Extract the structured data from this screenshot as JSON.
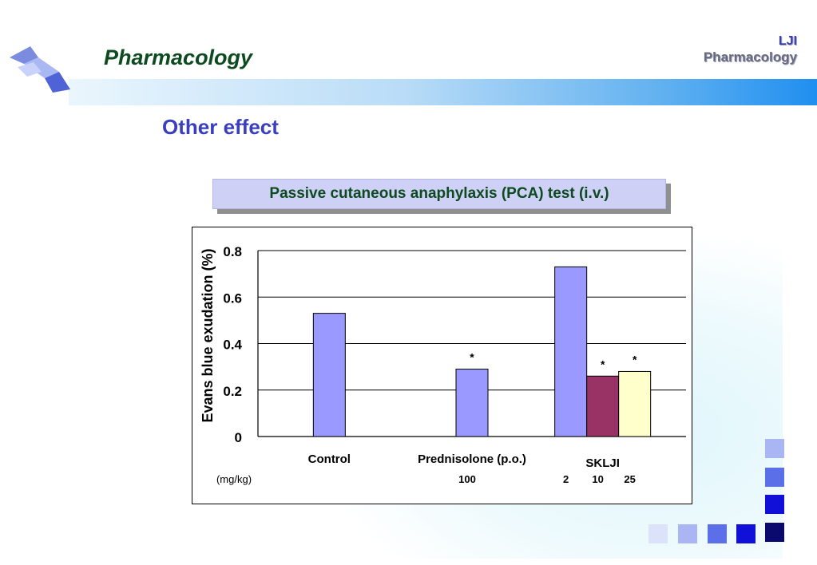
{
  "slide": {
    "title": "Pharmacology",
    "brand_line1": "LJI",
    "brand_line2": "Pharmacology",
    "subtitle": "Other effect"
  },
  "colors": {
    "title_green": "#0c4a1f",
    "subtitle_blue": "#3a3fc0",
    "bar_blue": "#9999ff",
    "bar_maroon": "#993366",
    "bar_cream": "#ffffcc"
  },
  "chart_data": {
    "type": "bar",
    "title": "Passive cutaneous anaphylaxis (PCA) test (i.v.)",
    "ylabel": "Evans blue exudation (%)",
    "ylim": [
      0,
      0.8
    ],
    "yticks": [
      0,
      0.2,
      0.4,
      0.6,
      0.8
    ],
    "ytick_labels": [
      "0",
      "0.2",
      "0.4",
      "0.6",
      "0.8"
    ],
    "grid": true,
    "dose_unit": "(mg/kg)",
    "groups": [
      {
        "label": "Control",
        "bars": [
          {
            "value": 0.53,
            "dose": "",
            "color": "#9999ff",
            "sig": ""
          }
        ]
      },
      {
        "label": "Prednisolone (p.o.)",
        "bars": [
          {
            "value": 0.29,
            "dose": "100",
            "color": "#9999ff",
            "sig": "*"
          }
        ]
      },
      {
        "label": "SKLJI",
        "bars": [
          {
            "value": 0.73,
            "dose": "2",
            "color": "#9999ff",
            "sig": ""
          },
          {
            "value": 0.26,
            "dose": "10",
            "color": "#993366",
            "sig": "*"
          },
          {
            "value": 0.28,
            "dose": "25",
            "color": "#ffffcc",
            "sig": "*"
          }
        ]
      }
    ]
  }
}
